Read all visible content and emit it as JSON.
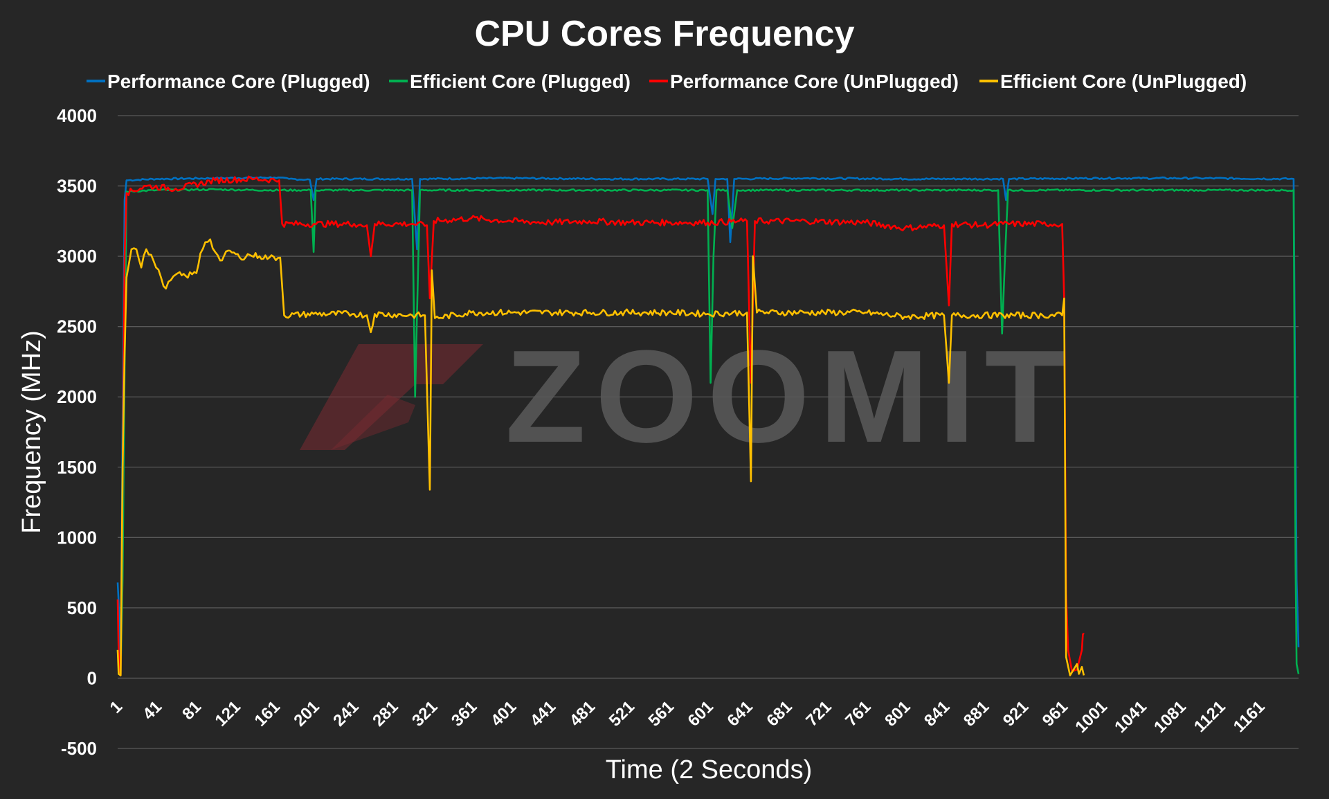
{
  "chart_data": {
    "type": "line",
    "title": "CPU Cores Frequency",
    "xlabel": "Time (2 Seconds)",
    "ylabel": "Frequency (MHz)",
    "ylim": [
      -500,
      4000
    ],
    "xlim": [
      1,
      1200
    ],
    "y_ticks": [
      4000,
      3500,
      3000,
      2500,
      2000,
      1500,
      1000,
      500,
      0,
      -500
    ],
    "x_ticks": [
      1,
      41,
      81,
      121,
      161,
      201,
      241,
      281,
      321,
      361,
      401,
      441,
      481,
      521,
      561,
      601,
      641,
      681,
      721,
      761,
      801,
      841,
      881,
      921,
      961,
      1001,
      1041,
      1081,
      1121,
      1161
    ],
    "grid": true,
    "legend_position": "top",
    "watermark": "ZOOMIT",
    "series": [
      {
        "name": "Performance Core (Plugged)",
        "color": "#0070C0",
        "points": [
          [
            1,
            680
          ],
          [
            2,
            540
          ],
          [
            4,
            120
          ],
          [
            6,
            1800
          ],
          [
            8,
            3400
          ],
          [
            10,
            3540
          ],
          [
            40,
            3550
          ],
          [
            100,
            3555
          ],
          [
            160,
            3560
          ],
          [
            175,
            3550
          ],
          [
            196,
            3545
          ],
          [
            200,
            3400
          ],
          [
            203,
            3550
          ],
          [
            300,
            3550
          ],
          [
            305,
            3050
          ],
          [
            308,
            3550
          ],
          [
            400,
            3555
          ],
          [
            500,
            3550
          ],
          [
            600,
            3550
          ],
          [
            605,
            3300
          ],
          [
            608,
            3550
          ],
          [
            620,
            3550
          ],
          [
            623,
            3100
          ],
          [
            627,
            3550
          ],
          [
            700,
            3555
          ],
          [
            800,
            3550
          ],
          [
            900,
            3550
          ],
          [
            903,
            3400
          ],
          [
            906,
            3550
          ],
          [
            1000,
            3555
          ],
          [
            1100,
            3555
          ],
          [
            1195,
            3550
          ],
          [
            1198,
            700
          ],
          [
            1200,
            220
          ]
        ]
      },
      {
        "name": "Efficient Core (Plugged)",
        "color": "#00B050",
        "points": [
          [
            1,
            200
          ],
          [
            2,
            100
          ],
          [
            4,
            30
          ],
          [
            6,
            700
          ],
          [
            8,
            2200
          ],
          [
            10,
            3460
          ],
          [
            40,
            3470
          ],
          [
            100,
            3475
          ],
          [
            150,
            3470
          ],
          [
            197,
            3470
          ],
          [
            200,
            3030
          ],
          [
            202,
            3470
          ],
          [
            300,
            3470
          ],
          [
            303,
            2000
          ],
          [
            305,
            2600
          ],
          [
            308,
            3470
          ],
          [
            400,
            3470
          ],
          [
            500,
            3470
          ],
          [
            600,
            3470
          ],
          [
            603,
            2100
          ],
          [
            606,
            3000
          ],
          [
            609,
            3470
          ],
          [
            620,
            3470
          ],
          [
            625,
            3200
          ],
          [
            630,
            3470
          ],
          [
            700,
            3470
          ],
          [
            800,
            3470
          ],
          [
            895,
            3470
          ],
          [
            899,
            2450
          ],
          [
            902,
            3000
          ],
          [
            905,
            3470
          ],
          [
            1000,
            3470
          ],
          [
            1100,
            3470
          ],
          [
            1195,
            3470
          ],
          [
            1197,
            800
          ],
          [
            1198,
            100
          ],
          [
            1200,
            30
          ]
        ]
      },
      {
        "name": "Performance Core (UnPlugged)",
        "color": "#FF0000",
        "points": [
          [
            1,
            560
          ],
          [
            2,
            190
          ],
          [
            4,
            20
          ],
          [
            6,
            1400
          ],
          [
            8,
            3000
          ],
          [
            10,
            3450
          ],
          [
            30,
            3500
          ],
          [
            60,
            3480
          ],
          [
            100,
            3540
          ],
          [
            140,
            3550
          ],
          [
            165,
            3540
          ],
          [
            168,
            3230
          ],
          [
            200,
            3230
          ],
          [
            241,
            3230
          ],
          [
            254,
            3220
          ],
          [
            258,
            3000
          ],
          [
            262,
            3230
          ],
          [
            300,
            3230
          ],
          [
            315,
            3220
          ],
          [
            318,
            2700
          ],
          [
            322,
            3250
          ],
          [
            360,
            3270
          ],
          [
            400,
            3250
          ],
          [
            440,
            3240
          ],
          [
            480,
            3250
          ],
          [
            520,
            3240
          ],
          [
            560,
            3240
          ],
          [
            600,
            3240
          ],
          [
            640,
            3250
          ],
          [
            644,
            2100
          ],
          [
            648,
            3250
          ],
          [
            700,
            3250
          ],
          [
            760,
            3240
          ],
          [
            800,
            3200
          ],
          [
            840,
            3220
          ],
          [
            845,
            2650
          ],
          [
            848,
            3230
          ],
          [
            880,
            3220
          ],
          [
            900,
            3230
          ],
          [
            940,
            3230
          ],
          [
            960,
            3230
          ],
          [
            962,
            2700
          ],
          [
            964,
            600
          ],
          [
            966,
            200
          ],
          [
            970,
            50
          ],
          [
            975,
            60
          ],
          [
            980,
            200
          ],
          [
            981,
            310
          ],
          [
            982,
            320
          ]
        ]
      },
      {
        "name": "Efficient Core (UnPlugged)",
        "color": "#FFC000",
        "points": [
          [
            1,
            200
          ],
          [
            2,
            30
          ],
          [
            4,
            20
          ],
          [
            6,
            1500
          ],
          [
            8,
            2300
          ],
          [
            10,
            2850
          ],
          [
            15,
            3050
          ],
          [
            20,
            3050
          ],
          [
            25,
            2920
          ],
          [
            30,
            3050
          ],
          [
            35,
            3010
          ],
          [
            40,
            2920
          ],
          [
            45,
            2850
          ],
          [
            50,
            2770
          ],
          [
            55,
            2830
          ],
          [
            60,
            2870
          ],
          [
            70,
            2860
          ],
          [
            81,
            2880
          ],
          [
            85,
            3020
          ],
          [
            90,
            3100
          ],
          [
            95,
            3120
          ],
          [
            100,
            3030
          ],
          [
            105,
            2970
          ],
          [
            115,
            3040
          ],
          [
            125,
            2990
          ],
          [
            135,
            3010
          ],
          [
            145,
            3000
          ],
          [
            155,
            2990
          ],
          [
            166,
            2990
          ],
          [
            170,
            2580
          ],
          [
            200,
            2590
          ],
          [
            241,
            2590
          ],
          [
            254,
            2580
          ],
          [
            258,
            2460
          ],
          [
            262,
            2590
          ],
          [
            300,
            2580
          ],
          [
            313,
            2580
          ],
          [
            318,
            1340
          ],
          [
            320,
            2900
          ],
          [
            323,
            2560
          ],
          [
            360,
            2600
          ],
          [
            400,
            2600
          ],
          [
            440,
            2600
          ],
          [
            480,
            2600
          ],
          [
            520,
            2600
          ],
          [
            560,
            2600
          ],
          [
            600,
            2590
          ],
          [
            640,
            2600
          ],
          [
            644,
            1400
          ],
          [
            646,
            3000
          ],
          [
            650,
            2600
          ],
          [
            700,
            2600
          ],
          [
            760,
            2600
          ],
          [
            800,
            2570
          ],
          [
            840,
            2580
          ],
          [
            845,
            2100
          ],
          [
            848,
            2580
          ],
          [
            880,
            2580
          ],
          [
            900,
            2580
          ],
          [
            940,
            2580
          ],
          [
            960,
            2580
          ],
          [
            962,
            2700
          ],
          [
            964,
            150
          ],
          [
            968,
            20
          ],
          [
            975,
            100
          ],
          [
            977,
            30
          ],
          [
            980,
            80
          ],
          [
            982,
            20
          ]
        ]
      }
    ]
  }
}
